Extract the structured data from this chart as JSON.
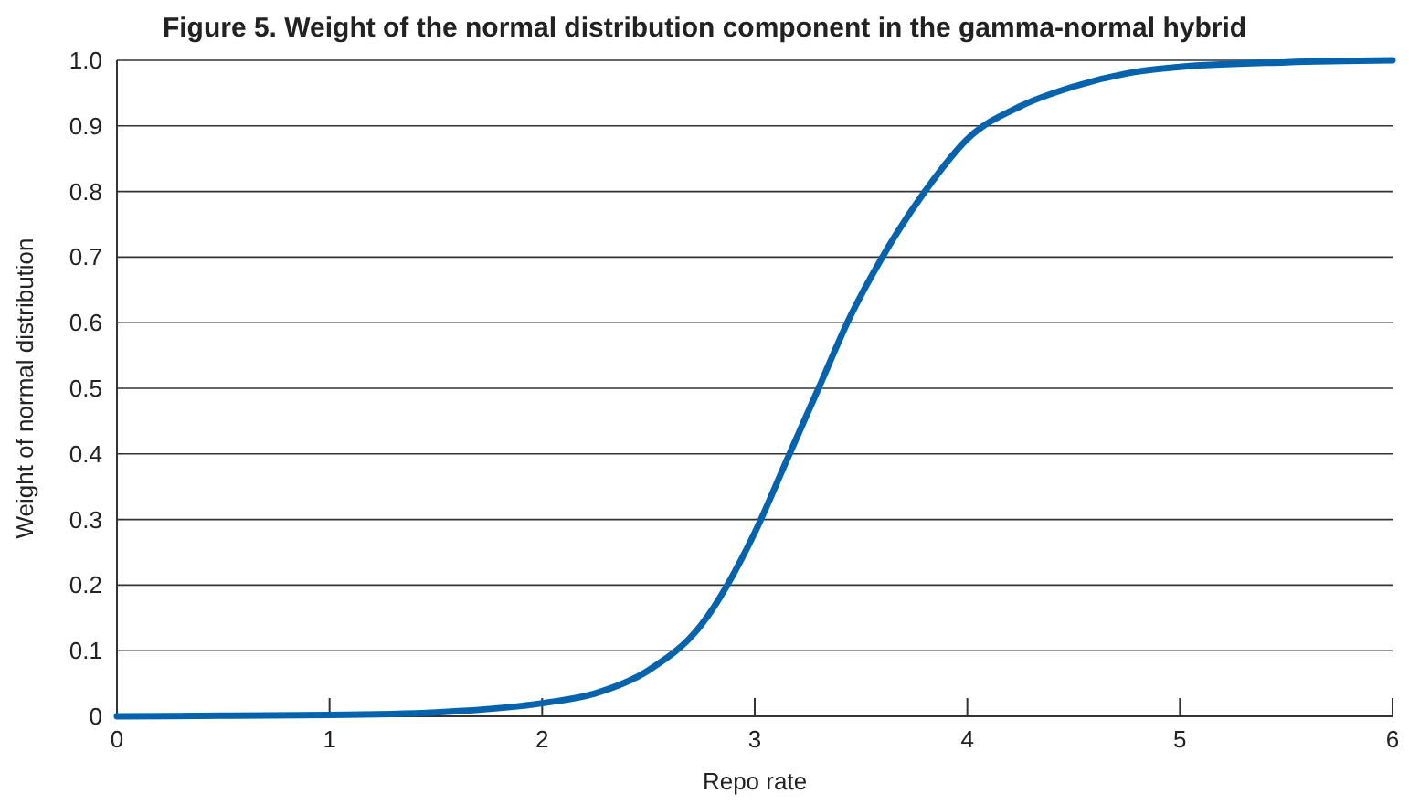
{
  "chart_data": {
    "type": "line",
    "title": "Figure 5. Weight of the normal distribution component in the gamma-normal hybrid",
    "xlabel": "Repo rate",
    "ylabel": "Weight of normal distribution",
    "series": [
      {
        "color": "#0563ad",
        "x": [
          0,
          0.5,
          1,
          1.5,
          2,
          2.25,
          2.5,
          2.75,
          3,
          3.15,
          3.3,
          3.45,
          3.6,
          3.8,
          4,
          4.25,
          4.5,
          4.75,
          5,
          5.5,
          6
        ],
        "values": [
          0,
          0.001,
          0.002,
          0.006,
          0.02,
          0.035,
          0.07,
          0.14,
          0.28,
          0.39,
          0.5,
          0.61,
          0.7,
          0.8,
          0.88,
          0.93,
          0.96,
          0.98,
          0.99,
          0.997,
          1.0
        ]
      }
    ],
    "xlim": [
      0,
      6
    ],
    "xticks": [
      0,
      1,
      2,
      3,
      4,
      5,
      6
    ],
    "ylim": [
      0,
      1
    ],
    "yticks": [
      0,
      0.1,
      0.2,
      0.3,
      0.4,
      0.5,
      0.6,
      0.7,
      0.8,
      0.9,
      {
        "value": 1,
        "label": "1.0"
      }
    ],
    "grid": "y",
    "marker": "none",
    "line_style": "solid"
  }
}
